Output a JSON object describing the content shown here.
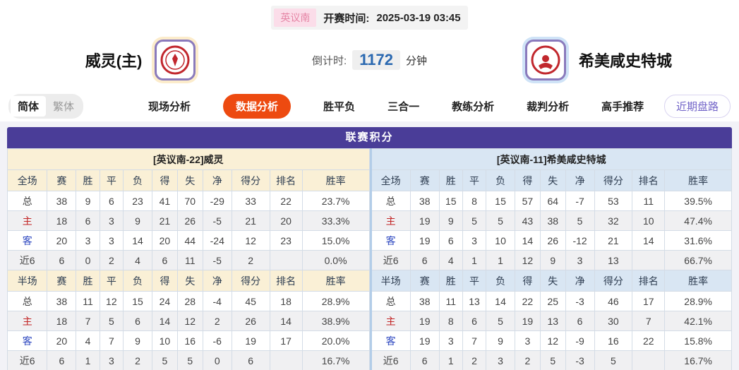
{
  "meta": {
    "league": "英议南",
    "kickoff_label": "开赛时间:",
    "kickoff_time": "2025-03-19 03:45"
  },
  "teams": {
    "home": {
      "name": "威灵(主)"
    },
    "away": {
      "name": "希美咸史特城"
    }
  },
  "countdown": {
    "label": "倒计时:",
    "value": "1172",
    "unit": "分钟"
  },
  "nav": {
    "lang_toggle": {
      "simplified": "简体",
      "traditional": "繁体"
    },
    "tabs": [
      {
        "label": "现场分析",
        "active": false
      },
      {
        "label": "数据分析",
        "active": true
      },
      {
        "label": "胜平负",
        "active": false
      },
      {
        "label": "三合一",
        "active": false
      },
      {
        "label": "教练分析",
        "active": false
      },
      {
        "label": "裁判分析",
        "active": false
      },
      {
        "label": "高手推荐",
        "active": false
      }
    ],
    "recent_button": "近期盘路"
  },
  "icons": {
    "home_logo": "welling-crest-red-circle",
    "away_logo": "hemel-crest-red-circle"
  },
  "colors": {
    "title_purple": "#4a3d98",
    "active_tab_orange": "#ed4a10",
    "home_header_cream": "#faf0d6",
    "away_header_blue": "#d9e6f3",
    "league_badge_pink": "#e585a5",
    "countdown_blue": "#2a68b0",
    "home_label_red": "#c22525",
    "away_label_blue": "#2f49c0"
  },
  "table": {
    "title": "联赛积分",
    "columns_full": [
      "全场",
      "赛",
      "胜",
      "平",
      "负",
      "得",
      "失",
      "净",
      "得分",
      "排名",
      "胜率"
    ],
    "columns_half": [
      "半场",
      "赛",
      "胜",
      "平",
      "负",
      "得",
      "失",
      "净",
      "得分",
      "排名",
      "胜率"
    ],
    "home": {
      "header": "[英议南-22]威灵",
      "full": [
        [
          "总",
          "38",
          "9",
          "6",
          "23",
          "41",
          "70",
          "-29",
          "33",
          "22",
          "23.7%"
        ],
        [
          "主",
          "18",
          "6",
          "3",
          "9",
          "21",
          "26",
          "-5",
          "21",
          "20",
          "33.3%"
        ],
        [
          "客",
          "20",
          "3",
          "3",
          "14",
          "20",
          "44",
          "-24",
          "12",
          "23",
          "15.0%"
        ],
        [
          "近6",
          "6",
          "0",
          "2",
          "4",
          "6",
          "11",
          "-5",
          "2",
          "",
          "0.0%"
        ]
      ],
      "half": [
        [
          "总",
          "38",
          "11",
          "12",
          "15",
          "24",
          "28",
          "-4",
          "45",
          "18",
          "28.9%"
        ],
        [
          "主",
          "18",
          "7",
          "5",
          "6",
          "14",
          "12",
          "2",
          "26",
          "14",
          "38.9%"
        ],
        [
          "客",
          "20",
          "4",
          "7",
          "9",
          "10",
          "16",
          "-6",
          "19",
          "17",
          "20.0%"
        ],
        [
          "近6",
          "6",
          "1",
          "3",
          "2",
          "5",
          "5",
          "0",
          "6",
          "",
          "16.7%"
        ]
      ]
    },
    "away": {
      "header": "[英议南-11]希美咸史特城",
      "full": [
        [
          "总",
          "38",
          "15",
          "8",
          "15",
          "57",
          "64",
          "-7",
          "53",
          "11",
          "39.5%"
        ],
        [
          "主",
          "19",
          "9",
          "5",
          "5",
          "43",
          "38",
          "5",
          "32",
          "10",
          "47.4%"
        ],
        [
          "客",
          "19",
          "6",
          "3",
          "10",
          "14",
          "26",
          "-12",
          "21",
          "14",
          "31.6%"
        ],
        [
          "近6",
          "6",
          "4",
          "1",
          "1",
          "12",
          "9",
          "3",
          "13",
          "",
          "66.7%"
        ]
      ],
      "half": [
        [
          "总",
          "38",
          "11",
          "13",
          "14",
          "22",
          "25",
          "-3",
          "46",
          "17",
          "28.9%"
        ],
        [
          "主",
          "19",
          "8",
          "6",
          "5",
          "19",
          "13",
          "6",
          "30",
          "7",
          "42.1%"
        ],
        [
          "客",
          "19",
          "3",
          "7",
          "9",
          "3",
          "12",
          "-9",
          "16",
          "22",
          "15.8%"
        ],
        [
          "近6",
          "6",
          "1",
          "2",
          "3",
          "2",
          "5",
          "-3",
          "5",
          "",
          "16.7%"
        ]
      ]
    }
  }
}
